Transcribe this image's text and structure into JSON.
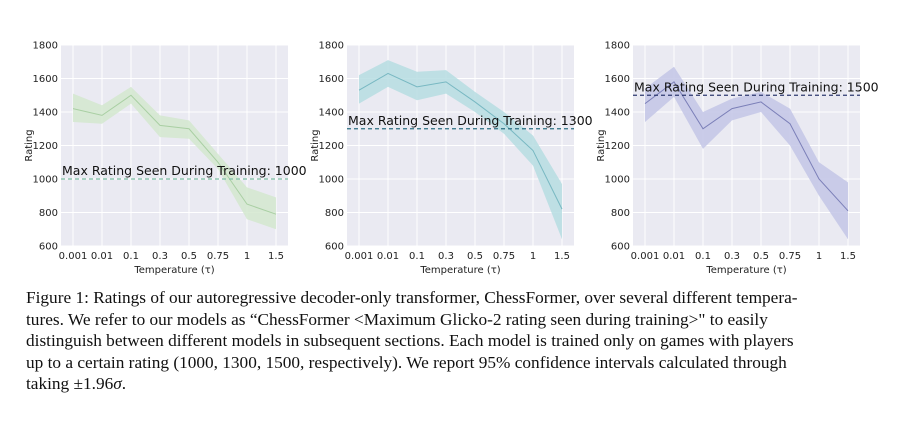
{
  "chart_data": [
    {
      "type": "line",
      "title": "",
      "xlabel": "Temperature (τ)",
      "ylabel": "Rating",
      "ylim": [
        600,
        1800
      ],
      "yticks": [
        "600",
        "800",
        "1000",
        "1200",
        "1400",
        "1600",
        "1800"
      ],
      "categories": [
        "0.001",
        "0.01",
        "0.1",
        "0.3",
        "0.5",
        "0.75",
        "1",
        "1.5"
      ],
      "grid": true,
      "line_color": "#a9cfa3",
      "band_color": "#d3e8cf",
      "threshold": {
        "value": 1000,
        "label": "Max Rating Seen During Training: 1000",
        "color": "#7fc0a6"
      },
      "series": [
        {
          "values": [
            1420,
            1380,
            1500,
            1320,
            1300,
            1100,
            850,
            790
          ],
          "upper": [
            1510,
            1440,
            1550,
            1380,
            1350,
            1150,
            950,
            890
          ],
          "lower": [
            1340,
            1330,
            1450,
            1250,
            1240,
            1060,
            760,
            700
          ]
        }
      ]
    },
    {
      "type": "line",
      "title": "",
      "xlabel": "Temperature (τ)",
      "ylabel": "Rating",
      "ylim": [
        600,
        1800
      ],
      "yticks": [
        "600",
        "800",
        "1000",
        "1200",
        "1400",
        "1600",
        "1800"
      ],
      "categories": [
        "0.001",
        "0.01",
        "0.1",
        "0.3",
        "0.5",
        "0.75",
        "1",
        "1.5"
      ],
      "grid": true,
      "line_color": "#78b8c2",
      "band_color": "#b6dde2",
      "threshold": {
        "value": 1300,
        "label": "Max Rating Seen During Training: 1300",
        "color": "#2d6f83"
      },
      "series": [
        {
          "values": [
            1530,
            1630,
            1550,
            1580,
            1460,
            1330,
            1170,
            820
          ],
          "upper": [
            1620,
            1710,
            1640,
            1650,
            1520,
            1400,
            1260,
            970
          ],
          "lower": [
            1450,
            1550,
            1470,
            1510,
            1400,
            1270,
            1080,
            640
          ]
        }
      ]
    },
    {
      "type": "line",
      "title": "",
      "xlabel": "Temperature (τ)",
      "ylabel": "Rating",
      "ylim": [
        600,
        1800
      ],
      "yticks": [
        "600",
        "800",
        "1000",
        "1200",
        "1400",
        "1600",
        "1800"
      ],
      "categories": [
        "0.001",
        "0.01",
        "0.1",
        "0.3",
        "0.5",
        "0.75",
        "1",
        "1.5"
      ],
      "grid": true,
      "line_color": "#7b7fb8",
      "band_color": "#c3c6e6",
      "threshold": {
        "value": 1500,
        "label": "Max Rating Seen During Training: 1500",
        "color": "#2f3a70"
      },
      "series": [
        {
          "values": [
            1450,
            1580,
            1300,
            1420,
            1460,
            1330,
            1000,
            810
          ],
          "upper": [
            1540,
            1670,
            1400,
            1480,
            1520,
            1420,
            1100,
            980
          ],
          "lower": [
            1340,
            1490,
            1180,
            1350,
            1400,
            1200,
            900,
            640
          ]
        }
      ]
    }
  ],
  "caption": {
    "line1": "Figure 1: Ratings of our autoregressive decoder-only transformer, ChessFormer, over several different tempera-",
    "line2": "tures. We refer to our models as “ChessFormer <Maximum Glicko-2 rating seen during training>\" to easily",
    "line3": "distinguish between different models in subsequent sections. Each model is trained only on games with players",
    "line4": "up to a certain rating (1000, 1300, 1500, respectively). We report 95% confidence intervals calculated through",
    "line5a": "taking ±1.96",
    "sigma": "σ",
    "line5b": "."
  }
}
